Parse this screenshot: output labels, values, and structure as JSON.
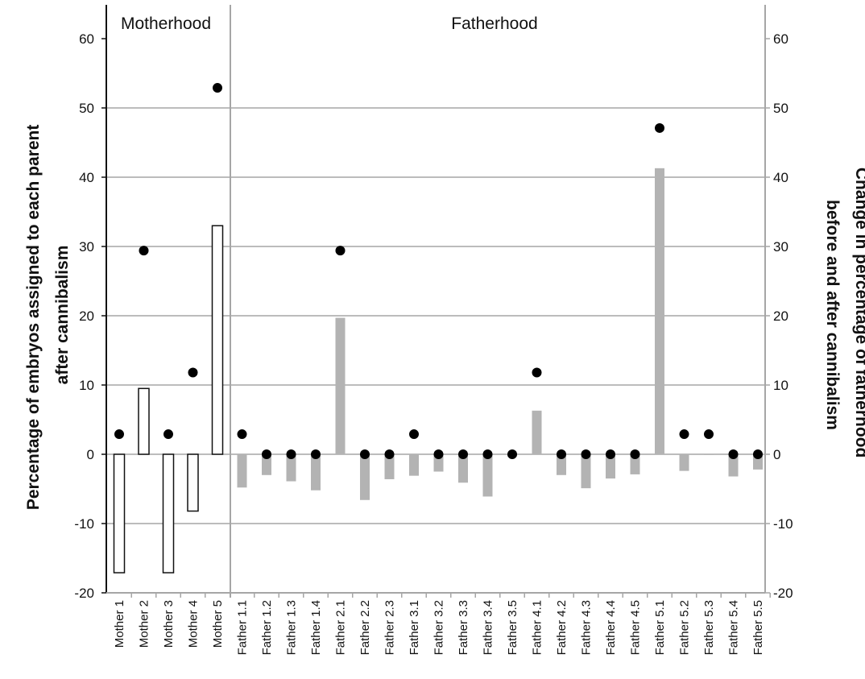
{
  "chart_data": {
    "type": "bar",
    "section_labels": [
      "Motherhood",
      "Fatherhood"
    ],
    "ylabel_left": [
      "Percentage of embryos assigned to each parent",
      "after cannibalism"
    ],
    "ylabel_right": [
      "Change in percentage of fatherhood",
      "before and after cannibalism"
    ],
    "ylim": [
      -20,
      60
    ],
    "yticks": [
      -20,
      -10,
      0,
      10,
      20,
      30,
      40,
      50,
      60
    ],
    "grid": true,
    "categories": [
      "Mother 1",
      "Mother 2",
      "Mother 3",
      "Mother 4",
      "Mother 5",
      "Father 1.1",
      "Father 1.2",
      "Father 1.3",
      "Father 1.4",
      "Father 2.1",
      "Father 2.2",
      "Father 2.3",
      "Father 3.1",
      "Father 3.2",
      "Father 3.3",
      "Father 3.4",
      "Father 3.5",
      "Father 4.1",
      "Father 4.2",
      "Father 4.3",
      "Father 4.4",
      "Father 4.5",
      "Father 5.1",
      "Father 5.2",
      "Father 5.3",
      "Father 5.4",
      "Father 5.5"
    ],
    "series": [
      {
        "kind": "bar",
        "axis": "right",
        "values": [
          -17.1,
          9.5,
          -17.1,
          -8.2,
          33.0,
          -4.8,
          -3.0,
          -3.9,
          -5.2,
          19.7,
          -6.6,
          -3.6,
          -3.1,
          -2.5,
          -4.1,
          -6.1,
          -0.3,
          6.3,
          -3.0,
          -4.9,
          -3.5,
          -2.9,
          41.3,
          -2.4,
          -0.1,
          -3.2,
          -2.2
        ],
        "colors": [
          "#ffffff",
          "#ffffff",
          "#ffffff",
          "#ffffff",
          "#ffffff",
          "#b3b3b3",
          "#b3b3b3",
          "#b3b3b3",
          "#b3b3b3",
          "#b3b3b3",
          "#b3b3b3",
          "#b3b3b3",
          "#b3b3b3",
          "#b3b3b3",
          "#b3b3b3",
          "#b3b3b3",
          "#b3b3b3",
          "#b3b3b3",
          "#b3b3b3",
          "#b3b3b3",
          "#b3b3b3",
          "#b3b3b3",
          "#b3b3b3",
          "#b3b3b3",
          "#b3b3b3",
          "#b3b3b3",
          "#b3b3b3"
        ]
      },
      {
        "kind": "dot",
        "axis": "left",
        "values": [
          2.9,
          29.4,
          2.9,
          11.8,
          52.9,
          2.9,
          0,
          0,
          0,
          29.4,
          0,
          0,
          2.9,
          0,
          0,
          0,
          0,
          11.8,
          0,
          0,
          0,
          0,
          47.1,
          2.9,
          2.9,
          0,
          0
        ]
      }
    ],
    "colors": {
      "mother_bar_fill": "#ffffff",
      "mother_bar_stroke": "#111111",
      "father_bar": "#b3b3b3",
      "grid": "#a6a6a6",
      "dot": "#000000"
    }
  }
}
